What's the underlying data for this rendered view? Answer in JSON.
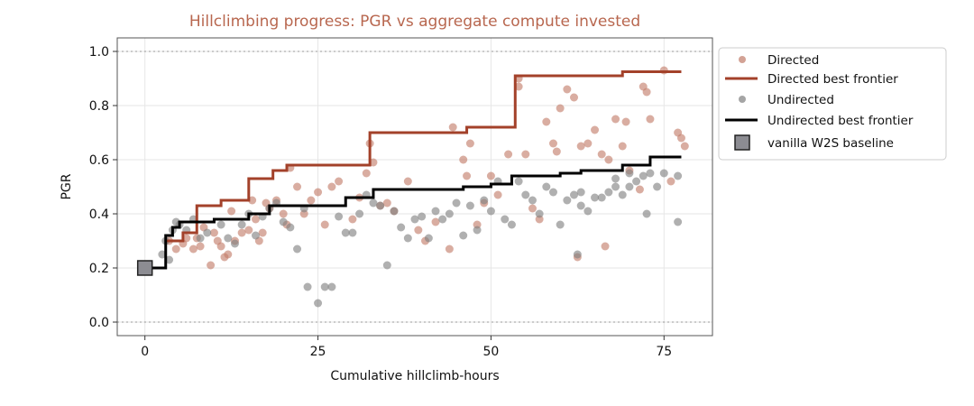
{
  "chart_data": {
    "type": "scatter",
    "title": "Hillclimbing progress: PGR vs aggregate compute invested",
    "xlabel": "Cumulative hillclimb-hours",
    "ylabel": "PGR",
    "xlim": [
      -4,
      82
    ],
    "ylim": [
      -0.05,
      1.05
    ],
    "xticks": [
      0,
      25,
      50,
      75
    ],
    "yticks": [
      0.0,
      0.2,
      0.4,
      0.6,
      0.8,
      1.0
    ],
    "xtick_labels": [
      "0",
      "25",
      "50",
      "75"
    ],
    "ytick_labels": [
      "0.0",
      "0.2",
      "0.4",
      "0.6",
      "0.8",
      "1.0"
    ],
    "grid": true,
    "reference_lines": [
      0.0,
      1.0
    ],
    "legend_position": "outside-right",
    "colors": {
      "directed_points": "#c17a68",
      "directed_line": "#a3412a",
      "undirected_points": "#7f7f7f",
      "undirected_line": "#000000",
      "baseline": "#8c8c92",
      "title": "#b8674f"
    },
    "series": [
      {
        "name": "Directed",
        "kind": "points",
        "points": [
          [
            3.5,
            0.3
          ],
          [
            4.5,
            0.27
          ],
          [
            5.5,
            0.29
          ],
          [
            6,
            0.31
          ],
          [
            7,
            0.27
          ],
          [
            7.5,
            0.31
          ],
          [
            8,
            0.28
          ],
          [
            8.5,
            0.35
          ],
          [
            9.5,
            0.21
          ],
          [
            10,
            0.33
          ],
          [
            10.5,
            0.3
          ],
          [
            11,
            0.28
          ],
          [
            11.5,
            0.24
          ],
          [
            12,
            0.25
          ],
          [
            12.5,
            0.41
          ],
          [
            13,
            0.3
          ],
          [
            14,
            0.33
          ],
          [
            15,
            0.34
          ],
          [
            15.5,
            0.45
          ],
          [
            16,
            0.38
          ],
          [
            16.5,
            0.3
          ],
          [
            17,
            0.33
          ],
          [
            17.5,
            0.44
          ],
          [
            18,
            0.42
          ],
          [
            19,
            0.45
          ],
          [
            20,
            0.4
          ],
          [
            20.5,
            0.36
          ],
          [
            21,
            0.57
          ],
          [
            22,
            0.5
          ],
          [
            23,
            0.4
          ],
          [
            24,
            0.45
          ],
          [
            25,
            0.48
          ],
          [
            26,
            0.36
          ],
          [
            27,
            0.5
          ],
          [
            28,
            0.52
          ],
          [
            30,
            0.38
          ],
          [
            31,
            0.46
          ],
          [
            32,
            0.55
          ],
          [
            32.5,
            0.66
          ],
          [
            33,
            0.59
          ],
          [
            34,
            0.43
          ],
          [
            35,
            0.44
          ],
          [
            36,
            0.41
          ],
          [
            38,
            0.52
          ],
          [
            39.5,
            0.34
          ],
          [
            40.5,
            0.3
          ],
          [
            42,
            0.37
          ],
          [
            44,
            0.27
          ],
          [
            44.5,
            0.72
          ],
          [
            46,
            0.6
          ],
          [
            46.5,
            0.54
          ],
          [
            47,
            0.66
          ],
          [
            48,
            0.36
          ],
          [
            49,
            0.44
          ],
          [
            50,
            0.54
          ],
          [
            51,
            0.47
          ],
          [
            52.5,
            0.62
          ],
          [
            54,
            0.9
          ],
          [
            54,
            0.87
          ],
          [
            55,
            0.62
          ],
          [
            56,
            0.42
          ],
          [
            57,
            0.38
          ],
          [
            58,
            0.74
          ],
          [
            59,
            0.66
          ],
          [
            59.5,
            0.63
          ],
          [
            60,
            0.79
          ],
          [
            61,
            0.86
          ],
          [
            62,
            0.83
          ],
          [
            62.5,
            0.24
          ],
          [
            63,
            0.65
          ],
          [
            64,
            0.66
          ],
          [
            65,
            0.71
          ],
          [
            66,
            0.62
          ],
          [
            66.5,
            0.28
          ],
          [
            67,
            0.6
          ],
          [
            68,
            0.75
          ],
          [
            69,
            0.65
          ],
          [
            69.5,
            0.74
          ],
          [
            70,
            0.56
          ],
          [
            71.5,
            0.49
          ],
          [
            72,
            0.87
          ],
          [
            72.5,
            0.85
          ],
          [
            73,
            0.75
          ],
          [
            75,
            0.93
          ],
          [
            76,
            0.52
          ],
          [
            77,
            0.7
          ],
          [
            77.5,
            0.68
          ],
          [
            78,
            0.65
          ]
        ]
      },
      {
        "name": "Directed best frontier",
        "kind": "step",
        "points": [
          [
            3,
            0.3
          ],
          [
            5.5,
            0.33
          ],
          [
            7.5,
            0.43
          ],
          [
            11,
            0.45
          ],
          [
            15,
            0.53
          ],
          [
            18.5,
            0.56
          ],
          [
            20.5,
            0.58
          ],
          [
            32.5,
            0.7
          ],
          [
            46.5,
            0.72
          ],
          [
            53.5,
            0.91
          ],
          [
            69,
            0.925
          ],
          [
            77.5,
            0.925
          ]
        ]
      },
      {
        "name": "Undirected",
        "kind": "points",
        "points": [
          [
            2.5,
            0.25
          ],
          [
            3,
            0.3
          ],
          [
            3.5,
            0.23
          ],
          [
            4,
            0.34
          ],
          [
            4.5,
            0.37
          ],
          [
            5,
            0.36
          ],
          [
            6,
            0.34
          ],
          [
            7,
            0.38
          ],
          [
            8,
            0.31
          ],
          [
            9,
            0.33
          ],
          [
            11,
            0.36
          ],
          [
            12,
            0.31
          ],
          [
            13,
            0.29
          ],
          [
            14,
            0.36
          ],
          [
            15,
            0.4
          ],
          [
            16,
            0.32
          ],
          [
            17,
            0.39
          ],
          [
            18,
            0.42
          ],
          [
            19,
            0.44
          ],
          [
            20,
            0.37
          ],
          [
            21,
            0.35
          ],
          [
            22,
            0.27
          ],
          [
            23,
            0.42
          ],
          [
            23.5,
            0.13
          ],
          [
            25,
            0.07
          ],
          [
            26,
            0.13
          ],
          [
            27,
            0.13
          ],
          [
            28,
            0.39
          ],
          [
            29,
            0.33
          ],
          [
            30,
            0.33
          ],
          [
            31,
            0.4
          ],
          [
            32,
            0.47
          ],
          [
            33,
            0.44
          ],
          [
            34,
            0.43
          ],
          [
            35,
            0.21
          ],
          [
            36,
            0.41
          ],
          [
            37,
            0.35
          ],
          [
            38,
            0.31
          ],
          [
            39,
            0.38
          ],
          [
            40,
            0.39
          ],
          [
            41,
            0.31
          ],
          [
            42,
            0.41
          ],
          [
            43,
            0.38
          ],
          [
            44,
            0.4
          ],
          [
            45,
            0.44
          ],
          [
            46,
            0.32
          ],
          [
            47,
            0.43
          ],
          [
            48,
            0.34
          ],
          [
            49,
            0.45
          ],
          [
            50,
            0.41
          ],
          [
            51,
            0.52
          ],
          [
            52,
            0.38
          ],
          [
            53,
            0.36
          ],
          [
            54,
            0.52
          ],
          [
            55,
            0.47
          ],
          [
            56,
            0.45
          ],
          [
            57,
            0.4
          ],
          [
            58,
            0.5
          ],
          [
            59,
            0.48
          ],
          [
            60,
            0.36
          ],
          [
            61,
            0.45
          ],
          [
            62,
            0.47
          ],
          [
            62.5,
            0.25
          ],
          [
            63,
            0.43
          ],
          [
            63,
            0.48
          ],
          [
            64,
            0.41
          ],
          [
            65,
            0.46
          ],
          [
            66,
            0.46
          ],
          [
            67,
            0.48
          ],
          [
            68,
            0.5
          ],
          [
            68,
            0.53
          ],
          [
            69,
            0.47
          ],
          [
            70,
            0.5
          ],
          [
            70,
            0.55
          ],
          [
            71,
            0.52
          ],
          [
            72,
            0.54
          ],
          [
            72.5,
            0.4
          ],
          [
            73,
            0.55
          ],
          [
            74,
            0.5
          ],
          [
            75,
            0.55
          ],
          [
            77,
            0.37
          ],
          [
            77,
            0.54
          ]
        ]
      },
      {
        "name": "Undirected best frontier",
        "kind": "step",
        "points": [
          [
            0,
            0.2
          ],
          [
            3,
            0.32
          ],
          [
            4,
            0.35
          ],
          [
            5,
            0.37
          ],
          [
            10,
            0.38
          ],
          [
            15,
            0.4
          ],
          [
            18,
            0.43
          ],
          [
            29,
            0.46
          ],
          [
            33,
            0.49
          ],
          [
            46,
            0.5
          ],
          [
            50,
            0.51
          ],
          [
            53,
            0.54
          ],
          [
            60,
            0.55
          ],
          [
            63,
            0.56
          ],
          [
            69,
            0.58
          ],
          [
            73,
            0.61
          ],
          [
            77.5,
            0.61
          ]
        ]
      },
      {
        "name": "vanilla W2S baseline",
        "kind": "marker",
        "points": [
          [
            0,
            0.2
          ]
        ]
      }
    ]
  }
}
